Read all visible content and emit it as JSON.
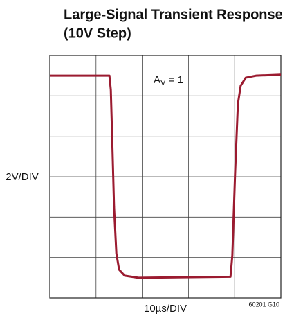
{
  "chart_data": {
    "type": "line",
    "title": [
      "Large-Signal Transient Response",
      "(10V Step)"
    ],
    "ylabel": "2V/DIV",
    "xlabel": "10µs/DIV",
    "note": "60201 G10",
    "annotation": {
      "main": "A",
      "sub": "V",
      "rest": " = 1"
    },
    "x": [
      0,
      12.9,
      13.2,
      13.5,
      13.9,
      14.4,
      15.0,
      16.2,
      19.2,
      39.1,
      39.5,
      40.1,
      40.7,
      41.3,
      42.4,
      44.6,
      50
    ],
    "series": [
      {
        "name": null,
        "color": "#9b1b30",
        "values": [
          5.0,
          5.0,
          4.3,
          1.9,
          -1.5,
          -3.8,
          -4.6,
          -4.9,
          -5.0,
          -4.95,
          -3.9,
          0.2,
          3.6,
          4.5,
          4.9,
          5.0,
          5.05
        ]
      }
    ],
    "xlim": [
      0,
      50
    ],
    "xticks": [
      0,
      10,
      20,
      30,
      40,
      50
    ],
    "ylim": [
      -6,
      6
    ],
    "yticks": [
      -6,
      -4,
      -2,
      0,
      2,
      4,
      6
    ],
    "grid": true
  }
}
